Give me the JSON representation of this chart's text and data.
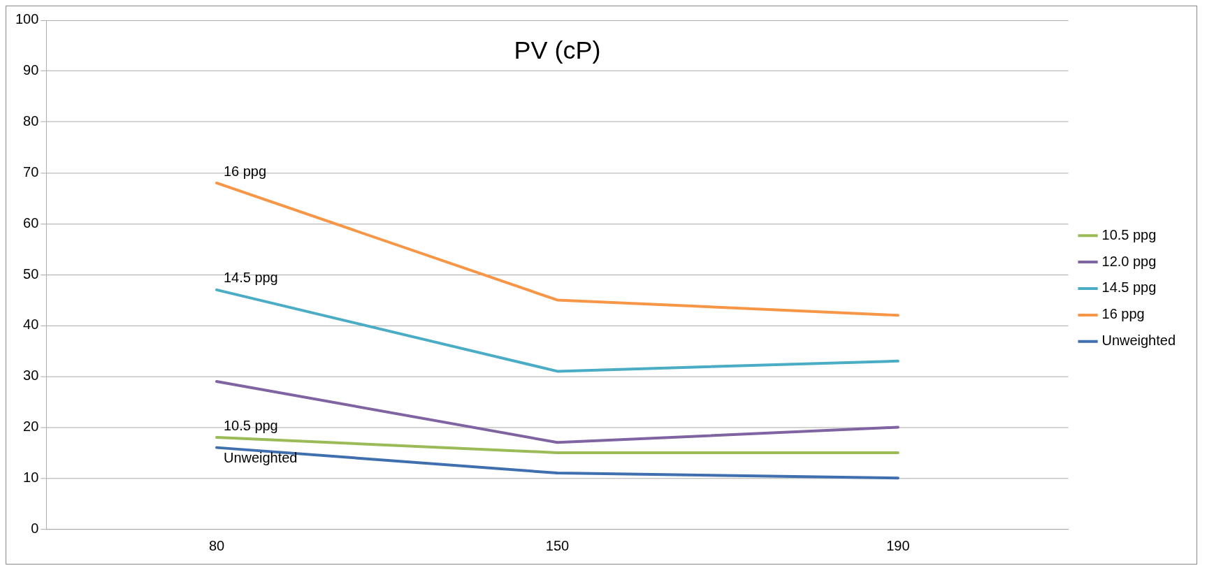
{
  "chart_data": {
    "type": "line",
    "title": "PV (cP)",
    "categories": [
      "80",
      "150",
      "190"
    ],
    "series": [
      {
        "name": "10.5 ppg",
        "color": "#9bbb59",
        "values": [
          18,
          15,
          15
        ]
      },
      {
        "name": "12.0 ppg",
        "color": "#8064a2",
        "values": [
          29,
          17,
          20
        ]
      },
      {
        "name": "14.5 ppg",
        "color": "#4bacc6",
        "values": [
          47,
          31,
          33
        ]
      },
      {
        "name": "16 ppg",
        "color": "#f79646",
        "values": [
          68,
          45,
          42
        ]
      },
      {
        "name": "Unweighted",
        "color": "#3f6fae",
        "values": [
          16,
          11,
          10
        ]
      }
    ],
    "ylim": [
      0,
      100
    ],
    "yticks": [
      0,
      10,
      20,
      30,
      40,
      50,
      60,
      70,
      80,
      90,
      100
    ],
    "grid": "y",
    "legend": "right",
    "marker": "none",
    "line_style": "solid",
    "annotations": [
      {
        "text": "16 ppg",
        "x": "80",
        "y": 68
      },
      {
        "text": "14.5 ppg",
        "x": "80",
        "y": 47
      },
      {
        "text": "10.5 ppg",
        "x": "80",
        "y": 18
      },
      {
        "text": "Unweighted",
        "x": "80",
        "y": 16
      }
    ]
  }
}
